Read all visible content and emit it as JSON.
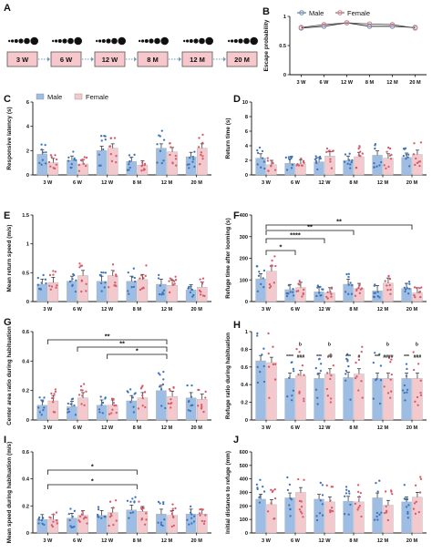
{
  "panel_letters": [
    "A",
    "B",
    "C",
    "D",
    "E",
    "F",
    "G",
    "H",
    "I",
    "J"
  ],
  "colors": {
    "male": "#9dbde4",
    "female": "#f4c9cd",
    "male_dot": "#3d73b8",
    "female_dot": "#d75a6a",
    "timeline_box": "#f6c8cc"
  },
  "timeline": {
    "letter": "A",
    "stages": [
      "3 W",
      "6 W",
      "12 W",
      "8 M",
      "12 M",
      "20 M"
    ]
  },
  "chart_data": [
    {
      "id": "B",
      "type": "line",
      "ylabel": "Escape probability",
      "categories": [
        "3 W",
        "6 W",
        "12 W",
        "8 M",
        "12 M",
        "20 M"
      ],
      "ylim": [
        0,
        1
      ],
      "yticks": [
        0,
        0.5,
        1
      ],
      "series": [
        {
          "name": "Male",
          "values": [
            0.8,
            0.83,
            0.89,
            0.83,
            0.83,
            0.81
          ]
        },
        {
          "name": "Female",
          "values": [
            0.81,
            0.86,
            0.89,
            0.87,
            0.86,
            0.8
          ]
        }
      ]
    },
    {
      "id": "C",
      "type": "bar",
      "ylabel": "Responsive latency (s)",
      "categories": [
        "3 W",
        "6 W",
        "12 W",
        "8 M",
        "12 M",
        "20 M"
      ],
      "ylim": [
        0,
        6
      ],
      "yticks": [
        0,
        2,
        4,
        6
      ],
      "legend": [
        "Male",
        "Female"
      ],
      "series": [
        {
          "name": "Male",
          "values": [
            1.7,
            1.2,
            2.0,
            1.1,
            2.2,
            1.5
          ]
        },
        {
          "name": "Female",
          "values": [
            1.0,
            0.9,
            2.2,
            0.8,
            1.9,
            2.2
          ]
        }
      ]
    },
    {
      "id": "D",
      "type": "bar",
      "ylabel": "Return time (s)",
      "categories": [
        "3 W",
        "6 W",
        "12 W",
        "8 M",
        "12 M",
        "20 M"
      ],
      "ylim": [
        0,
        10
      ],
      "yticks": [
        0,
        2,
        4,
        6,
        8,
        10
      ],
      "series": [
        {
          "name": "Male",
          "values": [
            2.3,
            1.6,
            1.8,
            2.0,
            2.7,
            2.4
          ]
        },
        {
          "name": "Female",
          "values": [
            1.4,
            1.5,
            2.6,
            2.5,
            2.3,
            2.8
          ]
        }
      ]
    },
    {
      "id": "E",
      "type": "bar",
      "ylabel": "Mean return speed (m/s)",
      "categories": [
        "3 W",
        "6 W",
        "12 W",
        "8 M",
        "12 M",
        "20 M"
      ],
      "ylim": [
        0,
        1.5
      ],
      "yticks": [
        0,
        0.5,
        1.0,
        1.5
      ],
      "series": [
        {
          "name": "Male",
          "values": [
            0.3,
            0.35,
            0.35,
            0.35,
            0.3,
            0.2
          ]
        },
        {
          "name": "Female",
          "values": [
            0.33,
            0.45,
            0.45,
            0.38,
            0.28,
            0.25
          ]
        }
      ]
    },
    {
      "id": "F",
      "type": "bar",
      "ylabel": "Refuge time after looming (s)",
      "categories": [
        "3 W",
        "6 W",
        "12 W",
        "8 M",
        "12 M",
        "20 M"
      ],
      "ylim": [
        0,
        400
      ],
      "yticks": [
        0,
        100,
        200,
        300,
        400
      ],
      "series": [
        {
          "name": "Male",
          "values": [
            105,
            55,
            45,
            80,
            50,
            60
          ]
        },
        {
          "name": "Female",
          "values": [
            140,
            65,
            40,
            60,
            85,
            40
          ]
        }
      ],
      "significance": [
        {
          "from": "3 W",
          "to": "6 W",
          "label": "*"
        },
        {
          "from": "3 W",
          "to": "12 W",
          "label": "****"
        },
        {
          "from": "3 W",
          "to": "8 M",
          "label": "**"
        },
        {
          "from": "3 W",
          "to": "20 M",
          "label": "**"
        }
      ]
    },
    {
      "id": "G",
      "type": "bar",
      "ylabel": "Center area ratio during habituation",
      "categories": [
        "3 W",
        "6 W",
        "12 W",
        "8 M",
        "12 M",
        "20 M"
      ],
      "ylim": [
        0,
        0.6
      ],
      "yticks": [
        0,
        0.2,
        0.4,
        0.6
      ],
      "series": [
        {
          "name": "Male",
          "values": [
            0.1,
            0.09,
            0.1,
            0.13,
            0.2,
            0.15
          ]
        },
        {
          "name": "Female",
          "values": [
            0.13,
            0.15,
            0.1,
            0.15,
            0.16,
            0.14
          ]
        }
      ],
      "significance": [
        {
          "from": "3 W",
          "to": "12 M",
          "label": "**"
        },
        {
          "from": "6 W",
          "to": "12 M",
          "label": "**"
        },
        {
          "from": "12 W",
          "to": "12 M",
          "label": "*"
        }
      ]
    },
    {
      "id": "H",
      "type": "bar",
      "ylabel": "Refuge ratio during habituation",
      "categories": [
        "3 W",
        "6 W",
        "12 W",
        "8 M",
        "12 M",
        "20 M"
      ],
      "ylim": [
        0,
        1.0
      ],
      "yticks": [
        0,
        0.2,
        0.4,
        0.6,
        0.8,
        1.0
      ],
      "series": [
        {
          "name": "Male",
          "values": [
            0.67,
            0.47,
            0.47,
            0.48,
            0.47,
            0.47
          ]
        },
        {
          "name": "Female",
          "values": [
            0.65,
            0.5,
            0.52,
            0.52,
            0.47,
            0.47
          ]
        }
      ],
      "annotations": [
        {
          "category": "6 W",
          "male": "****",
          "female": "###",
          "top": "b"
        },
        {
          "category": "12 W",
          "male": "***",
          "female": "##",
          "top": "b"
        },
        {
          "category": "8 M",
          "male": "***",
          "female": "#",
          "top": ""
        },
        {
          "category": "12 M",
          "male": "***",
          "female": "####",
          "top": "b"
        },
        {
          "category": "20 M",
          "male": "***",
          "female": "###",
          "top": "b"
        }
      ]
    },
    {
      "id": "I",
      "type": "bar",
      "ylabel": "Mean speed during habituation (m/s)",
      "categories": [
        "3 W",
        "6 W",
        "12 W",
        "8 M",
        "12 M",
        "20 M"
      ],
      "ylim": [
        0,
        0.6
      ],
      "yticks": [
        0,
        0.2,
        0.4,
        0.6
      ],
      "series": [
        {
          "name": "Male",
          "values": [
            0.1,
            0.11,
            0.13,
            0.17,
            0.14,
            0.14
          ]
        },
        {
          "name": "Female",
          "values": [
            0.1,
            0.13,
            0.15,
            0.16,
            0.13,
            0.14
          ]
        }
      ],
      "significance": [
        {
          "from": "3 W",
          "to": "8 M",
          "label": "*"
        },
        {
          "from": "3 W",
          "to": "8 M",
          "label": "*"
        }
      ]
    },
    {
      "id": "J",
      "type": "bar",
      "ylabel": "Initial distance to refuge (mm)",
      "categories": [
        "3 W",
        "6 W",
        "12 W",
        "8 M",
        "12 M",
        "20 M"
      ],
      "ylim": [
        0,
        600
      ],
      "yticks": [
        0,
        100,
        200,
        300,
        400,
        500,
        600
      ],
      "series": [
        {
          "name": "Male",
          "values": [
            250,
            260,
            250,
            235,
            260,
            230
          ]
        },
        {
          "name": "Female",
          "values": [
            210,
            300,
            230,
            230,
            205,
            265
          ]
        }
      ]
    }
  ]
}
